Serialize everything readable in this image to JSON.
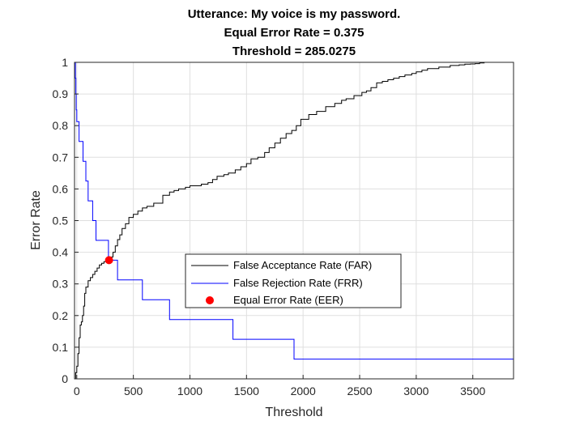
{
  "chart_data": {
    "type": "line",
    "title": [
      "Utterance: My voice is my password.",
      "Equal Error Rate = 0.375",
      "Threshold = 285.0275"
    ],
    "xlabel": "Threshold",
    "ylabel": "Error Rate",
    "xlim": [
      -20,
      3860
    ],
    "ylim": [
      0,
      1
    ],
    "xticks": [
      0,
      500,
      1000,
      1500,
      2000,
      2500,
      3000,
      3500
    ],
    "yticks": [
      0,
      0.1,
      0.2,
      0.3,
      0.4,
      0.5,
      0.6,
      0.7,
      0.8,
      0.9,
      1
    ],
    "grid": true,
    "legend_position": "center-right",
    "series": [
      {
        "name": "False Acceptance Rate (FAR)",
        "color": "#000000",
        "style": "step",
        "x": [
          -20,
          -10,
          0,
          10,
          20,
          30,
          40,
          50,
          60,
          70,
          80,
          100,
          120,
          140,
          160,
          180,
          200,
          220,
          240,
          260,
          285,
          300,
          320,
          340,
          360,
          380,
          400,
          430,
          460,
          500,
          540,
          580,
          620,
          680,
          760,
          820,
          860,
          900,
          960,
          1000,
          1100,
          1160,
          1200,
          1240,
          1300,
          1340,
          1400,
          1450,
          1500,
          1540,
          1600,
          1660,
          1700,
          1750,
          1800,
          1850,
          1900,
          1940,
          1980,
          2050,
          2120,
          2200,
          2280,
          2340,
          2380,
          2450,
          2520,
          2560,
          2600,
          2650,
          2700,
          2750,
          2800,
          2850,
          2900,
          2960,
          3000,
          3050,
          3100,
          3200,
          3300,
          3380,
          3430,
          3480,
          3520,
          3560,
          3600,
          3700,
          3760,
          3860
        ],
        "values": [
          0.0,
          0.02,
          0.04,
          0.08,
          0.13,
          0.17,
          0.18,
          0.2,
          0.23,
          0.27,
          0.29,
          0.31,
          0.32,
          0.33,
          0.34,
          0.35,
          0.36,
          0.365,
          0.37,
          0.373,
          0.375,
          0.385,
          0.4,
          0.42,
          0.44,
          0.455,
          0.475,
          0.49,
          0.51,
          0.52,
          0.53,
          0.54,
          0.545,
          0.555,
          0.58,
          0.59,
          0.595,
          0.6,
          0.605,
          0.61,
          0.615,
          0.62,
          0.63,
          0.64,
          0.645,
          0.65,
          0.66,
          0.67,
          0.68,
          0.695,
          0.7,
          0.715,
          0.73,
          0.745,
          0.76,
          0.775,
          0.785,
          0.8,
          0.82,
          0.835,
          0.845,
          0.86,
          0.87,
          0.88,
          0.885,
          0.895,
          0.905,
          0.91,
          0.92,
          0.935,
          0.94,
          0.945,
          0.95,
          0.955,
          0.96,
          0.965,
          0.97,
          0.975,
          0.98,
          0.985,
          0.99,
          0.992,
          0.994,
          0.995,
          0.996,
          0.998,
          1.0,
          1.0,
          1.0,
          1.0
        ]
      },
      {
        "name": "False Rejection Rate (FRR)",
        "color": "#0000ff",
        "style": "step",
        "x": [
          -20,
          -12,
          -8,
          -5,
          0,
          20,
          55,
          80,
          100,
          140,
          170,
          280,
          360,
          580,
          820,
          1380,
          1920,
          3840,
          3860
        ],
        "values": [
          1.0,
          0.95,
          0.9,
          0.85,
          0.8125,
          0.75,
          0.6875,
          0.625,
          0.5625,
          0.5,
          0.4375,
          0.375,
          0.3125,
          0.25,
          0.1875,
          0.125,
          0.0625,
          0.0625,
          0.0
        ]
      }
    ],
    "markers": [
      {
        "name": "Equal Error Rate (EER)",
        "color": "#ff0000",
        "x": 285.0275,
        "y": 0.375
      }
    ]
  }
}
